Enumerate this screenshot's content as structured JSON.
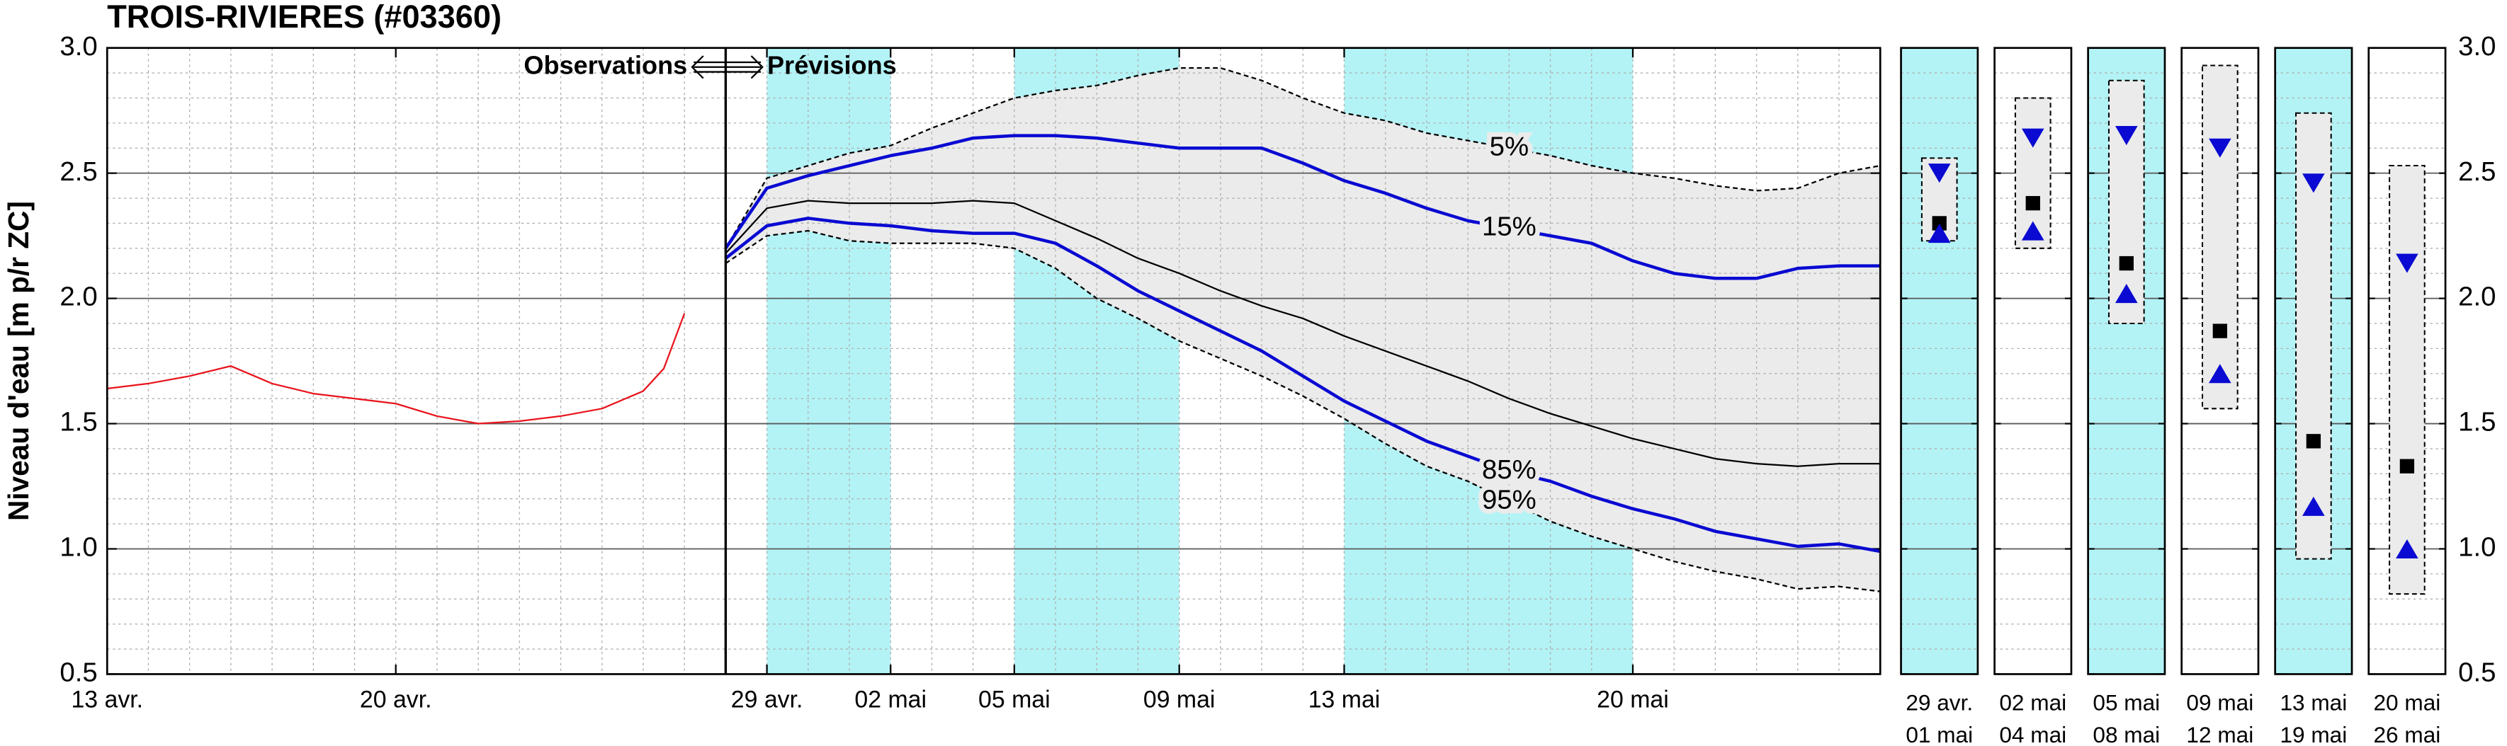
{
  "chart_data": [
    {
      "type": "line",
      "title": "TROIS-RIVIERES (#03360)",
      "ylabel": "Niveau d'eau [m p/r ZC]",
      "annotation_left": "Observations",
      "annotation_right": "Prévisions",
      "forecast_start": 15,
      "xlim": [
        0,
        43
      ],
      "xticks": [
        {
          "value": 0,
          "label": "13 avr."
        },
        {
          "value": 7,
          "label": "20 avr."
        },
        {
          "value": 16,
          "label": "29 avr."
        },
        {
          "value": 19,
          "label": "02 mai"
        },
        {
          "value": 22,
          "label": "05 mai"
        },
        {
          "value": 26,
          "label": "09 mai"
        },
        {
          "value": 30,
          "label": "13 mai"
        },
        {
          "value": 37,
          "label": "20 mai"
        }
      ],
      "ylim": [
        0.5,
        3.0
      ],
      "yticks": [
        0.5,
        {
          "value": 1.0,
          "label": "1.0"
        },
        1.5,
        {
          "value": 2.0,
          "label": "2.0"
        },
        2.5,
        {
          "value": 3.0,
          "label": "3.0"
        }
      ],
      "grid": true,
      "minor_grid": true,
      "shaded_periods": [
        [
          16,
          19
        ],
        [
          22,
          26
        ],
        [
          30,
          37
        ]
      ],
      "shade_color": "#b3f3f6",
      "band_fill": "#ebebeb",
      "series": [
        {
          "color": "#e8141c",
          "width": 1,
          "x": [
            0,
            1,
            2,
            3,
            4,
            5,
            6,
            7,
            8,
            9,
            10,
            11,
            12,
            13,
            13.5,
            14
          ],
          "values": [
            1.64,
            1.66,
            1.69,
            1.73,
            1.66,
            1.62,
            1.6,
            1.58,
            1.53,
            1.5,
            1.51,
            1.53,
            1.56,
            1.63,
            1.72,
            1.94
          ]
        },
        {
          "name": "5%",
          "color": "#000000",
          "width": 1,
          "dash": true,
          "x": [
            15,
            16,
            17,
            18,
            19,
            20,
            21,
            22,
            23,
            24,
            25,
            26,
            27,
            28,
            29,
            30,
            31,
            32,
            33,
            34,
            35,
            36,
            37,
            38,
            39,
            40,
            41,
            42,
            43
          ],
          "values": [
            2.2,
            2.48,
            2.53,
            2.58,
            2.61,
            2.68,
            2.74,
            2.8,
            2.83,
            2.85,
            2.89,
            2.92,
            2.92,
            2.87,
            2.8,
            2.74,
            2.71,
            2.66,
            2.63,
            2.6,
            2.57,
            2.53,
            2.5,
            2.48,
            2.45,
            2.43,
            2.44,
            2.5,
            2.53
          ]
        },
        {
          "name": "15%",
          "color": "#0a0ad2",
          "width": 2,
          "x": [
            15,
            16,
            17,
            18,
            19,
            20,
            21,
            22,
            23,
            24,
            25,
            26,
            27,
            28,
            29,
            30,
            31,
            32,
            33,
            34,
            35,
            36,
            37,
            38,
            39,
            40,
            41,
            42,
            43
          ],
          "values": [
            2.2,
            2.44,
            2.49,
            2.53,
            2.57,
            2.6,
            2.64,
            2.65,
            2.65,
            2.64,
            2.62,
            2.6,
            2.6,
            2.6,
            2.54,
            2.47,
            2.42,
            2.36,
            2.31,
            2.28,
            2.25,
            2.22,
            2.15,
            2.1,
            2.08,
            2.08,
            2.12,
            2.13,
            2.13
          ]
        },
        {
          "color": "#000000",
          "width": 1,
          "x": [
            15,
            16,
            17,
            18,
            19,
            20,
            21,
            22,
            23,
            24,
            25,
            26,
            27,
            28,
            29,
            30,
            31,
            32,
            33,
            34,
            35,
            36,
            37,
            38,
            39,
            40,
            41,
            42,
            43
          ],
          "values": [
            2.18,
            2.36,
            2.39,
            2.38,
            2.38,
            2.38,
            2.39,
            2.38,
            2.31,
            2.24,
            2.16,
            2.1,
            2.03,
            1.97,
            1.92,
            1.85,
            1.79,
            1.73,
            1.67,
            1.6,
            1.54,
            1.49,
            1.44,
            1.4,
            1.36,
            1.34,
            1.33,
            1.34,
            1.34
          ]
        },
        {
          "name": "85%",
          "color": "#0a0ad2",
          "width": 2,
          "x": [
            15,
            16,
            17,
            18,
            19,
            20,
            21,
            22,
            23,
            24,
            25,
            26,
            27,
            28,
            29,
            30,
            31,
            32,
            33,
            34,
            35,
            36,
            37,
            38,
            39,
            40,
            41,
            42,
            43
          ],
          "values": [
            2.16,
            2.29,
            2.32,
            2.3,
            2.29,
            2.27,
            2.26,
            2.26,
            2.22,
            2.13,
            2.03,
            1.95,
            1.87,
            1.79,
            1.69,
            1.59,
            1.51,
            1.43,
            1.37,
            1.31,
            1.27,
            1.21,
            1.16,
            1.12,
            1.07,
            1.04,
            1.01,
            1.02,
            0.99
          ]
        },
        {
          "name": "95%",
          "color": "#000000",
          "width": 1,
          "dash": true,
          "x": [
            15,
            16,
            17,
            18,
            19,
            20,
            21,
            22,
            23,
            24,
            25,
            26,
            27,
            28,
            29,
            30,
            31,
            32,
            33,
            34,
            35,
            36,
            37,
            38,
            39,
            40,
            41,
            42,
            43
          ],
          "values": [
            2.14,
            2.25,
            2.27,
            2.23,
            2.22,
            2.22,
            2.22,
            2.2,
            2.12,
            2.0,
            1.92,
            1.83,
            1.76,
            1.69,
            1.61,
            1.52,
            1.42,
            1.33,
            1.27,
            1.19,
            1.11,
            1.05,
            1.0,
            0.95,
            0.91,
            0.88,
            0.84,
            0.85,
            0.83
          ]
        }
      ]
    },
    {
      "type": "range",
      "categories": [
        [
          "29 avr.",
          "01 mai"
        ],
        [
          "02 mai",
          "04 mai"
        ],
        [
          "05 mai",
          "08 mai"
        ],
        [
          "09 mai",
          "12 mai"
        ],
        [
          "13 mai",
          "19 mai"
        ],
        [
          "20 mai",
          "26 mai"
        ]
      ],
      "shaded": [
        true,
        false,
        true,
        false,
        true,
        false
      ],
      "shade_color": "#b3f3f6",
      "box_fill": "#ebebeb",
      "marker_color": "#0a0ad2",
      "median_color": "#000000",
      "high": [
        2.56,
        2.8,
        2.87,
        2.93,
        2.74,
        2.53
      ],
      "low": [
        2.23,
        2.2,
        1.9,
        1.56,
        0.96,
        0.82
      ],
      "median": [
        2.3,
        2.38,
        2.14,
        1.87,
        1.43,
        1.33
      ],
      "upper": [
        2.5,
        2.64,
        2.65,
        2.6,
        2.46,
        2.14
      ],
      "lower": [
        2.26,
        2.27,
        2.02,
        1.7,
        1.17,
        1.0
      ],
      "ylim": [
        0.5,
        3.0
      ],
      "yticks": [
        0.5,
        {
          "value": 1.0,
          "label": "1.0"
        },
        1.5,
        {
          "value": 2.0,
          "label": "2.0"
        },
        2.5,
        {
          "value": 3.0,
          "label": "3.0"
        }
      ],
      "grid": true,
      "minor_grid": true
    }
  ]
}
